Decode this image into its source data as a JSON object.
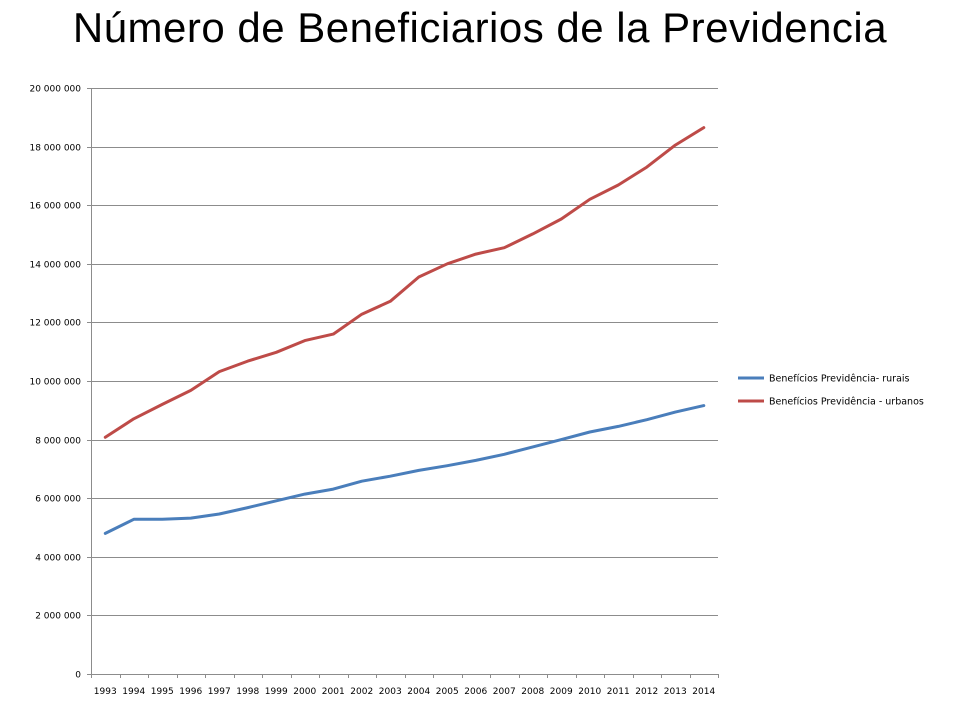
{
  "slide": {
    "title": "Número de Beneficiarios de la Previdencia"
  },
  "chart_data": {
    "type": "line",
    "title": "",
    "xlabel": "",
    "ylabel": "",
    "categories": [
      "1993",
      "1994",
      "1995",
      "1996",
      "1997",
      "1998",
      "1999",
      "2000",
      "2001",
      "2002",
      "2003",
      "2004",
      "2005",
      "2006",
      "2007",
      "2008",
      "2009",
      "2010",
      "2011",
      "2012",
      "2013",
      "2014"
    ],
    "y_tick_labels": [
      "0",
      "2 000 000",
      "4 000 000",
      "6 000 000",
      "8 000 000",
      "10 000 000",
      "12 000 000",
      "14 000 000",
      "16 000 000",
      "18 000 000",
      "20 000 000"
    ],
    "ylim": [
      0,
      20000000
    ],
    "y_step": 2000000,
    "grid": "horizontal",
    "legend_position": "right",
    "series": [
      {
        "name": "Benefícios Previdência- rurais",
        "color": "#4a7ebb",
        "values": [
          4800000,
          5280000,
          5280000,
          5320000,
          5460000,
          5680000,
          5910000,
          6140000,
          6310000,
          6580000,
          6750000,
          6950000,
          7110000,
          7290000,
          7500000,
          7750000,
          8000000,
          8260000,
          8450000,
          8680000,
          8940000,
          9160000
        ]
      },
      {
        "name": "Benefícios Previdência - urbanos",
        "color": "#be4b48",
        "values": [
          8080000,
          8710000,
          9200000,
          9680000,
          10320000,
          10680000,
          10980000,
          11380000,
          11600000,
          12280000,
          12720000,
          13550000,
          14000000,
          14330000,
          14550000,
          15020000,
          15530000,
          16200000,
          16690000,
          17300000,
          18050000,
          18650000
        ]
      }
    ]
  }
}
